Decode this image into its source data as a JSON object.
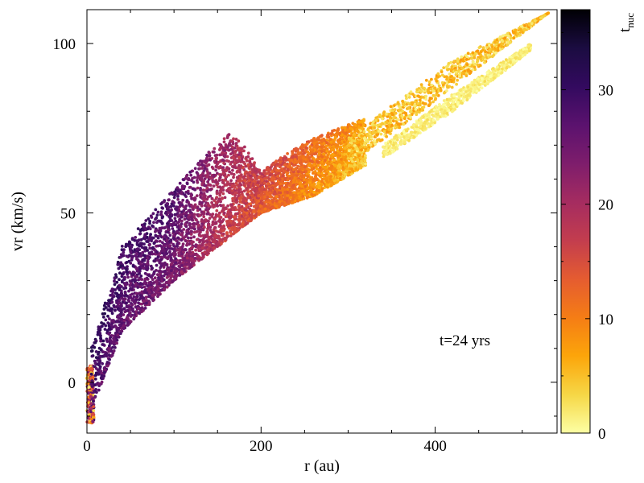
{
  "chart_data": {
    "type": "scatter",
    "title": "",
    "xlabel": "r (au)",
    "ylabel": "vr (km/s)",
    "xlim": [
      0,
      540
    ],
    "ylim": [
      -15,
      110
    ],
    "x_ticks": [
      0,
      200,
      400
    ],
    "y_ticks": [
      0,
      50,
      100
    ],
    "grid": false,
    "colorbar": {
      "label": "t",
      "label_subscript": "nuc",
      "range": [
        0,
        37
      ],
      "ticks": [
        0,
        10,
        20,
        30
      ],
      "colormap": "inferno-reversed",
      "stops": [
        "#fcffa4",
        "#f6d746",
        "#fca50a",
        "#f57d15",
        "#e55c30",
        "#c33d4e",
        "#a52c60",
        "#7e1d6c",
        "#5b126e",
        "#330a5f",
        "#1b0c41",
        "#000004"
      ]
    },
    "annotation": "t=24 yrs",
    "tnuc_vs_r_trend": [
      {
        "r": 0,
        "tnuc": 27
      },
      {
        "r": 100,
        "tnuc": 24
      },
      {
        "r": 150,
        "tnuc": 18
      },
      {
        "r": 200,
        "tnuc": 13
      },
      {
        "r": 260,
        "tnuc": 8
      },
      {
        "r": 320,
        "tnuc": 4
      },
      {
        "r": 450,
        "tnuc": 2
      },
      {
        "r": 540,
        "tnuc": 1
      }
    ],
    "point_clouds": [
      {
        "part": "core",
        "r_range": [
          0,
          8
        ],
        "vr_range": [
          -12,
          5
        ],
        "tnuc": [
          0,
          30
        ]
      },
      {
        "part": "main_band",
        "r_range": [
          5,
          320
        ],
        "vr_lower": [
          [
            5,
            -8
          ],
          [
            40,
            15
          ],
          [
            100,
            30
          ],
          [
            150,
            40
          ],
          [
            200,
            50
          ],
          [
            260,
            55
          ],
          [
            320,
            64
          ]
        ],
        "vr_upper": [
          [
            5,
            10
          ],
          [
            40,
            40
          ],
          [
            100,
            57
          ],
          [
            140,
            68
          ],
          [
            165,
            74
          ],
          [
            180,
            70
          ],
          [
            200,
            62
          ],
          [
            220,
            66
          ],
          [
            260,
            72
          ],
          [
            320,
            78
          ]
        ]
      },
      {
        "part": "upper_branch",
        "r_range": [
          300,
          530
        ],
        "vr_lower": [
          [
            300,
            64
          ],
          [
            400,
            83
          ],
          [
            530,
            109
          ]
        ],
        "vr_upper": [
          [
            300,
            72
          ],
          [
            420,
            95
          ],
          [
            530,
            109
          ]
        ],
        "tnuc": [
          1,
          8
        ]
      },
      {
        "part": "lower_branch",
        "r_range": [
          340,
          510
        ],
        "vr_lower": [
          [
            340,
            66
          ],
          [
            420,
            80
          ],
          [
            510,
            98
          ]
        ],
        "vr_upper": [
          [
            340,
            70
          ],
          [
            420,
            85
          ],
          [
            510,
            100
          ]
        ],
        "tnuc": [
          0,
          3
        ]
      }
    ],
    "n_points": 7000
  }
}
